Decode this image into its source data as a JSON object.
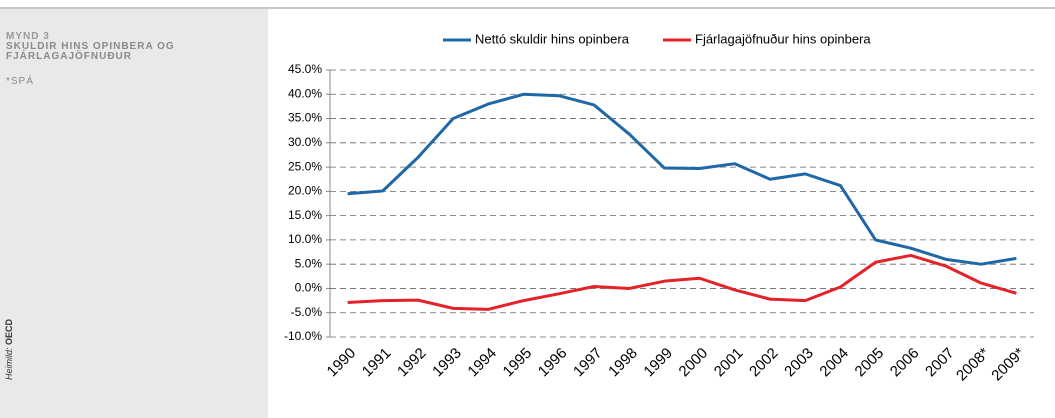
{
  "chart_data": {
    "type": "line",
    "figure_number": "MYND 3",
    "title": "SKULDIR HINS OPINBERA OG FJÁRLAGAJÖFNUÐUR",
    "note": "*SPÁ",
    "source_label": "Heimild:",
    "source": "OECD",
    "categories": [
      "1990",
      "1991",
      "1992",
      "1993",
      "1994",
      "1995",
      "1996",
      "1997",
      "1998",
      "1999",
      "2000",
      "2001",
      "2002",
      "2003",
      "2004",
      "2005",
      "2006",
      "2007",
      "2008*",
      "2009*"
    ],
    "series": [
      {
        "name": "Nettó skuldir hins opinbera",
        "color": "#1f67a6",
        "values": [
          19.5,
          20.1,
          27,
          35,
          38,
          40,
          39.7,
          37.8,
          31.8,
          24.8,
          24.7,
          25.7,
          22.5,
          23.6,
          21.2,
          10,
          8.3,
          6,
          5,
          6.2
        ]
      },
      {
        "name": "Fjárlagajöfnuður hins opinbera",
        "color": "#e3222a",
        "values": [
          -2.9,
          -2.5,
          -2.4,
          -4.1,
          -4.3,
          -2.5,
          -1.1,
          0.4,
          0.0,
          1.5,
          2.1,
          -0.3,
          -2.2,
          -2.5,
          0.3,
          5.4,
          6.8,
          4.6,
          1.1,
          -1.0
        ]
      }
    ],
    "ylim": [
      -10,
      45
    ],
    "yticks": [
      {
        "value": -10,
        "label": "-10.0%"
      },
      {
        "value": -5,
        "label": "-5.0%"
      },
      {
        "value": 0,
        "label": "0.0%"
      },
      {
        "value": 5,
        "label": "5.0%"
      },
      {
        "value": 10,
        "label": "10.0%"
      },
      {
        "value": 15,
        "label": "15.0%"
      },
      {
        "value": 20,
        "label": "20.0%"
      },
      {
        "value": 25,
        "label": "25.0%"
      },
      {
        "value": 30,
        "label": "30.0%"
      },
      {
        "value": 35,
        "label": "35.0%"
      },
      {
        "value": 40,
        "label": "40.0%"
      },
      {
        "value": 45,
        "label": "45.0%"
      }
    ],
    "grid": true,
    "legend": "top"
  }
}
